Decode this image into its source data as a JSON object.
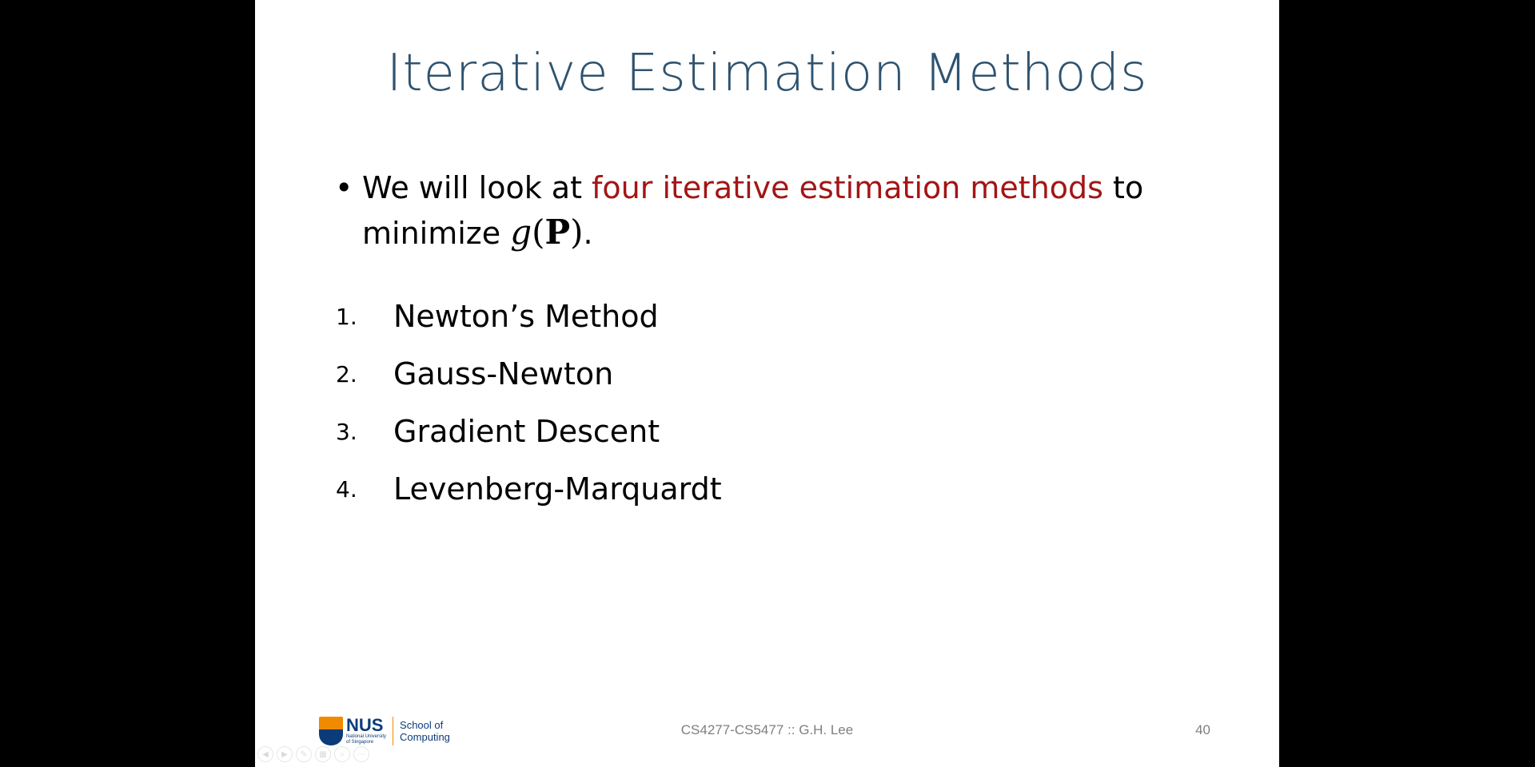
{
  "slide": {
    "title": "Iterative Estimation Methods",
    "bullet": {
      "symbol": "•",
      "text_before": "We will look at ",
      "highlight": "four iterative estimation methods",
      "text_after": " to minimize ",
      "math_g": "g",
      "math_open": "(",
      "math_p": "P",
      "math_close": ")",
      "text_end": ".",
      "highlight_color": "#a31515"
    },
    "methods": [
      {
        "num": "1.",
        "label": "Newton’s Method"
      },
      {
        "num": "2.",
        "label": "Gauss-Newton"
      },
      {
        "num": "3.",
        "label": "Gradient Descent"
      },
      {
        "num": "4.",
        "label": "Levenberg-Marquardt"
      }
    ]
  },
  "footer": {
    "logo": {
      "name": "NUS",
      "subtitle_line1": "National University",
      "subtitle_line2": "of Singapore",
      "school_line1": "School of",
      "school_line2": "Computing"
    },
    "course": "CS4277-CS5477 :: G.H. Lee",
    "page_number": "40"
  },
  "toolbar": {
    "buttons": [
      {
        "icon": "previous-slide-icon",
        "glyph": "◀"
      },
      {
        "icon": "next-slide-icon",
        "glyph": "▶"
      },
      {
        "icon": "pen-icon",
        "glyph": "✎"
      },
      {
        "icon": "slides-grid-icon",
        "glyph": "▦"
      },
      {
        "icon": "zoom-icon",
        "glyph": "⌕"
      },
      {
        "icon": "more-options-icon",
        "glyph": "⋯"
      }
    ]
  },
  "colors": {
    "title": "#2e5370",
    "highlight": "#a31515",
    "footer_text": "#7f7f7f",
    "nus_blue": "#0c3b7a",
    "nus_orange": "#f08a00"
  }
}
